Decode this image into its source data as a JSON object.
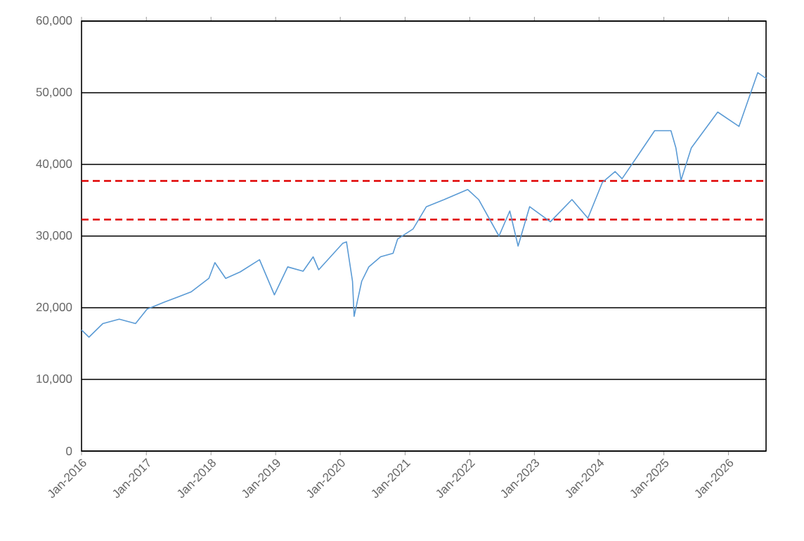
{
  "chart_data": {
    "type": "line",
    "x": [
      "2016-01-01",
      "2016-02-12",
      "2016-05-01",
      "2016-08-01",
      "2016-11-01",
      "2017-01-05",
      "2017-04-15",
      "2017-09-10",
      "2017-12-20",
      "2018-01-23",
      "2018-03-25",
      "2018-06-15",
      "2018-10-02",
      "2018-12-25",
      "2019-03-10",
      "2019-06-05",
      "2019-08-01",
      "2019-09-01",
      "2020-01-15",
      "2020-02-05",
      "2020-03-10",
      "2020-03-19",
      "2020-05-01",
      "2020-06-10",
      "2020-08-15",
      "2020-10-25",
      "2020-11-20",
      "2021-02-15",
      "2021-05-01",
      "2021-08-10",
      "2021-12-20",
      "2022-02-20",
      "2022-06-15",
      "2022-08-15",
      "2022-10-01",
      "2022-12-05",
      "2023-04-01",
      "2023-08-01",
      "2023-10-30",
      "2024-01-20",
      "2024-04-01",
      "2024-05-10",
      "2024-08-01",
      "2024-11-10",
      "2025-02-10",
      "2025-03-10",
      "2025-04-08",
      "2025-06-05",
      "2025-11-01",
      "2026-03-01",
      "2026-06-15",
      "2026-08-01"
    ],
    "series": [
      {
        "color": "#5b9bd5",
        "values": [
          16900,
          15900,
          17800,
          18400,
          17800,
          19800,
          20800,
          22200,
          24100,
          26300,
          24100,
          25000,
          26700,
          21800,
          25700,
          25100,
          27100,
          25300,
          29000,
          29200,
          23700,
          18800,
          23700,
          25700,
          27100,
          27600,
          29600,
          31000,
          34100,
          35100,
          36500,
          35100,
          30000,
          33500,
          28600,
          34100,
          32000,
          35100,
          32500,
          37500,
          39000,
          38000,
          41000,
          44700,
          44700,
          42300,
          37800,
          42300,
          47300,
          45300,
          52800,
          52000
        ]
      }
    ],
    "xlim": [
      "2016-01-01",
      "2026-08-01"
    ],
    "xticks": [
      {
        "value": "2016-01-01",
        "label": "Jan-2016"
      },
      {
        "value": "2017-01-01",
        "label": "Jan-2017"
      },
      {
        "value": "2018-01-01",
        "label": "Jan-2018"
      },
      {
        "value": "2019-01-01",
        "label": "Jan-2019"
      },
      {
        "value": "2020-01-01",
        "label": "Jan-2020"
      },
      {
        "value": "2021-01-01",
        "label": "Jan-2021"
      },
      {
        "value": "2022-01-01",
        "label": "Jan-2022"
      },
      {
        "value": "2023-01-01",
        "label": "Jan-2023"
      },
      {
        "value": "2024-01-01",
        "label": "Jan-2024"
      },
      {
        "value": "2025-01-01",
        "label": "Jan-2025"
      },
      {
        "value": "2026-01-01",
        "label": "Jan-2026"
      }
    ],
    "ylim": [
      0,
      60000
    ],
    "yticks": [
      0,
      {
        "value": 10000,
        "label": "10,000"
      },
      {
        "value": 20000,
        "label": "20,000"
      },
      {
        "value": 30000,
        "label": "30,000"
      },
      {
        "value": 40000,
        "label": "40,000"
      },
      {
        "value": 50000,
        "label": "50,000"
      },
      {
        "value": 60000,
        "label": "60,000"
      }
    ],
    "grid": "y",
    "legend": false,
    "marker": "none",
    "line_style": "solid",
    "ref_lines": [
      {
        "axis": "y",
        "value": 37700,
        "color": "#e00000",
        "line_style": "dashed"
      },
      {
        "axis": "y",
        "value": 32300,
        "color": "#e00000",
        "line_style": "dashed"
      }
    ]
  }
}
